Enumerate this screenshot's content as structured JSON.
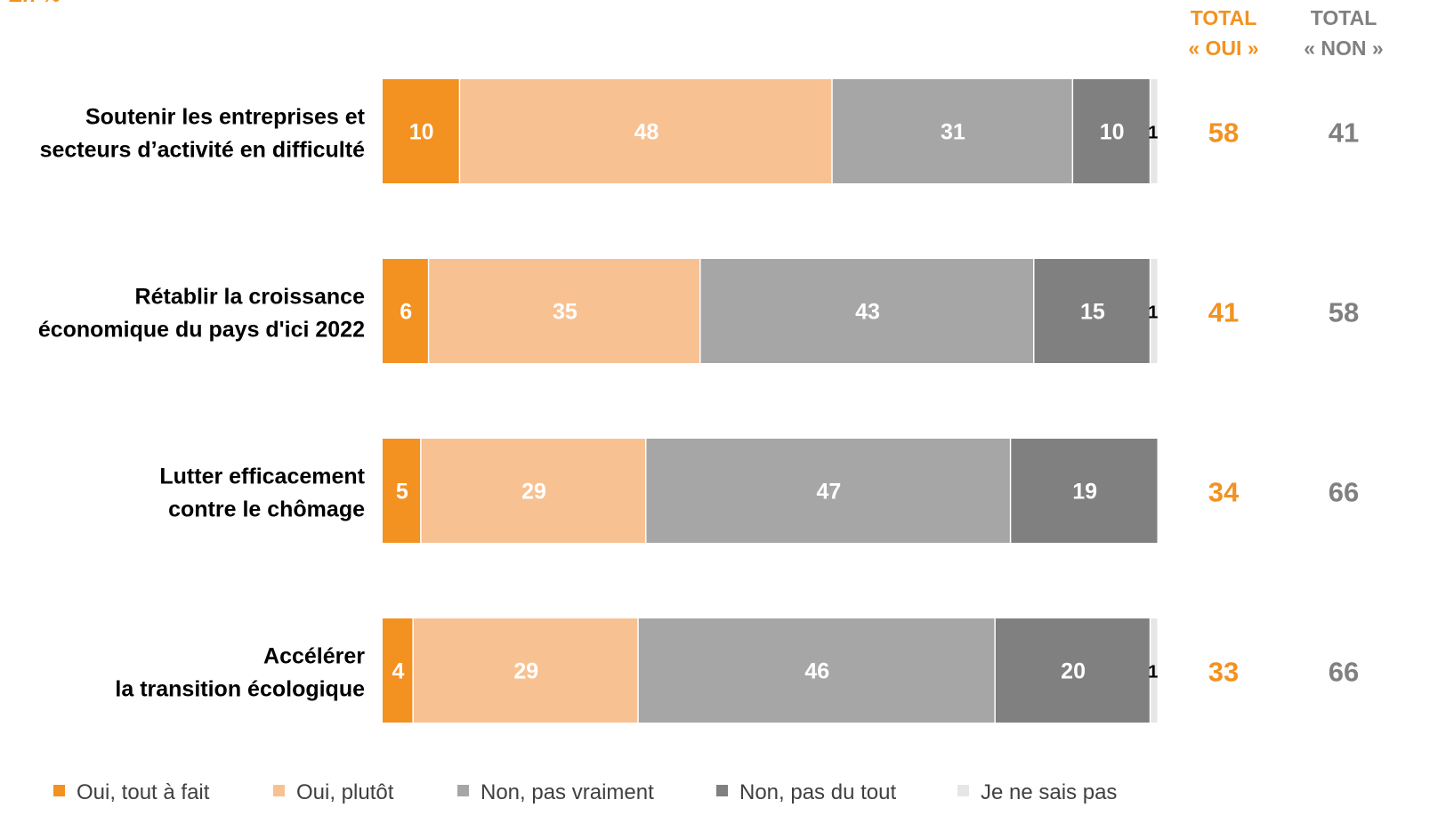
{
  "chart_data": {
    "type": "bar",
    "orientation": "horizontal",
    "stacked": true,
    "unit_note": "En %",
    "xlim": [
      0,
      100
    ],
    "grid": false,
    "legend_position": "bottom",
    "categories": [
      [
        "Soutenir les entreprises et",
        "secteurs d’activité en difficulté"
      ],
      [
        "Rétablir la croissance",
        "économique du pays d'ici 2022"
      ],
      [
        "Lutter efficacement",
        "contre le chômage"
      ],
      [
        "Accélérer",
        "la transition écologique"
      ]
    ],
    "series": [
      {
        "name": "Oui, tout à fait",
        "color": "#F39121",
        "label_color": "#FFFFFF",
        "values": [
          10,
          6,
          5,
          4
        ]
      },
      {
        "name": "Oui, plutôt",
        "color": "#F8C192",
        "label_color": "#FFFFFF",
        "values": [
          48,
          35,
          29,
          29
        ]
      },
      {
        "name": "Non, pas vraiment",
        "color": "#A6A6A6",
        "label_color": "#FFFFFF",
        "values": [
          31,
          43,
          47,
          46
        ]
      },
      {
        "name": "Non, pas du tout",
        "color": "#808080",
        "label_color": "#FFFFFF",
        "values": [
          10,
          15,
          19,
          20
        ]
      },
      {
        "name": "Je ne sais pas",
        "color": "#E6E6E6",
        "label_color": "#000000",
        "values": [
          1,
          1,
          0,
          1
        ]
      }
    ],
    "totals": {
      "oui": {
        "header": [
          "TOTAL",
          "« OUI »"
        ],
        "color": "#F39121",
        "values": [
          58,
          41,
          34,
          33
        ]
      },
      "non": {
        "header": [
          "TOTAL",
          "« NON »"
        ],
        "color": "#808080",
        "values": [
          41,
          58,
          66,
          66
        ]
      }
    }
  }
}
